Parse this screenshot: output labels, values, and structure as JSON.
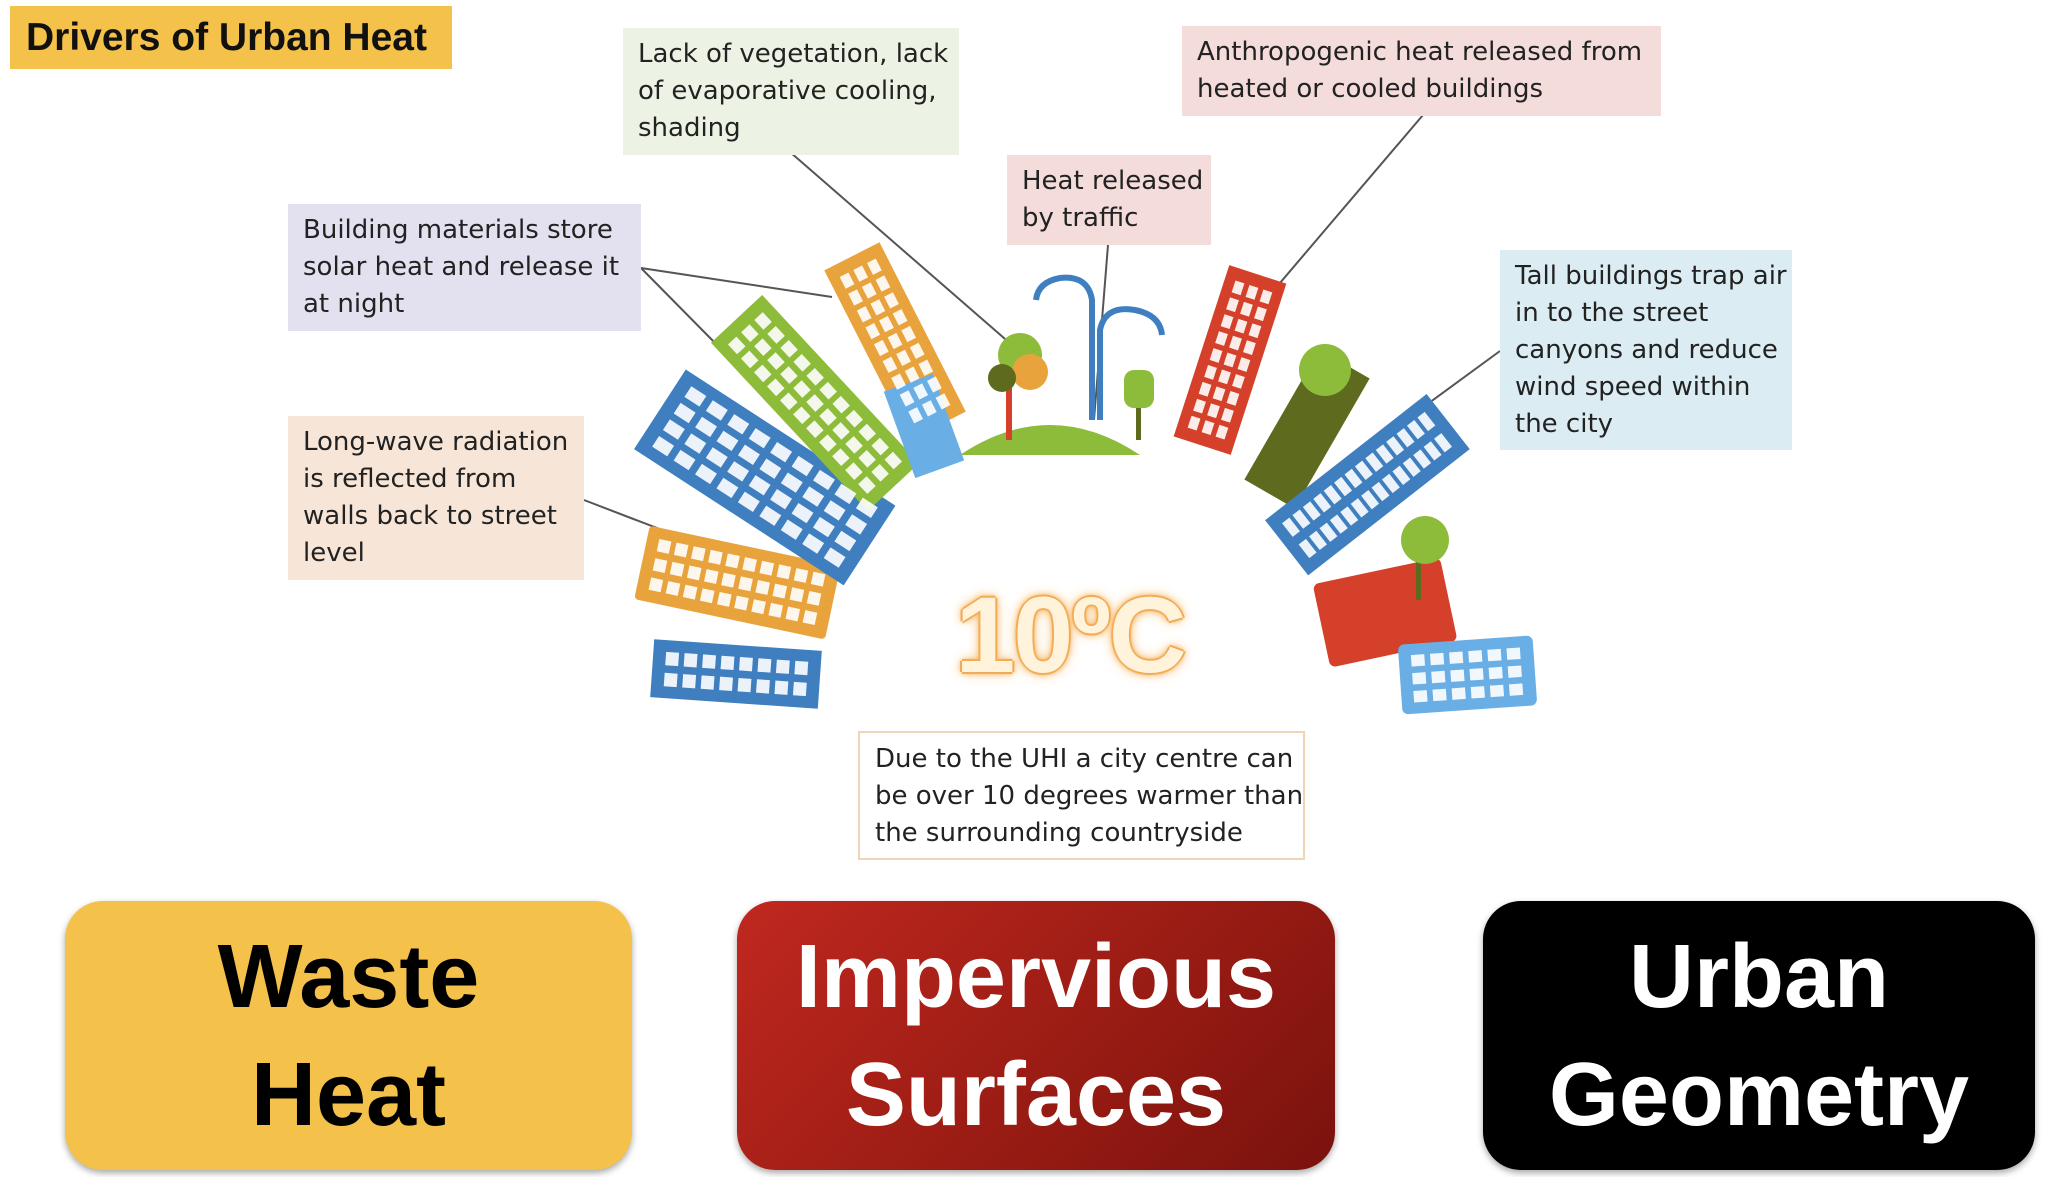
{
  "title": "Drivers of Urban Heat",
  "callouts": {
    "vegetation": [
      "Lack of vegetation, lack",
      "of evaporative cooling,",
      "shading"
    ],
    "anthropogenic": [
      "Anthropogenic heat released from",
      "heated or cooled buildings"
    ],
    "traffic": [
      "Heat released",
      "by traffic"
    ],
    "materials": [
      "Building materials store",
      "solar heat and release it",
      "at night"
    ],
    "tall_buildings": [
      "Tall buildings trap air",
      "in to the street",
      "canyons and reduce",
      "wind speed within",
      "the city"
    ],
    "longwave": [
      "Long-wave radiation",
      "is reflected from",
      "walls back to street",
      "level"
    ],
    "uhi": [
      "Due to the UHI a city centre can",
      "be over 10 degrees warmer than",
      "the surrounding countryside"
    ]
  },
  "temperature": "10ºC",
  "categories": {
    "waste_heat": [
      "Waste",
      "Heat"
    ],
    "impervious": [
      "Impervious",
      "Surfaces"
    ],
    "geometry": [
      "Urban",
      "Geometry"
    ]
  },
  "colors": {
    "title_bg": "#f4c14b",
    "waste_heat_bg": "#f4c14b",
    "impervious_bg": "#b0201a",
    "geometry_bg": "#000000",
    "building_blue": "#3f7fc0",
    "building_green": "#8dbb3a",
    "building_orange": "#e9a33c",
    "building_red": "#d4402a",
    "building_olive": "#5e6b1f"
  }
}
